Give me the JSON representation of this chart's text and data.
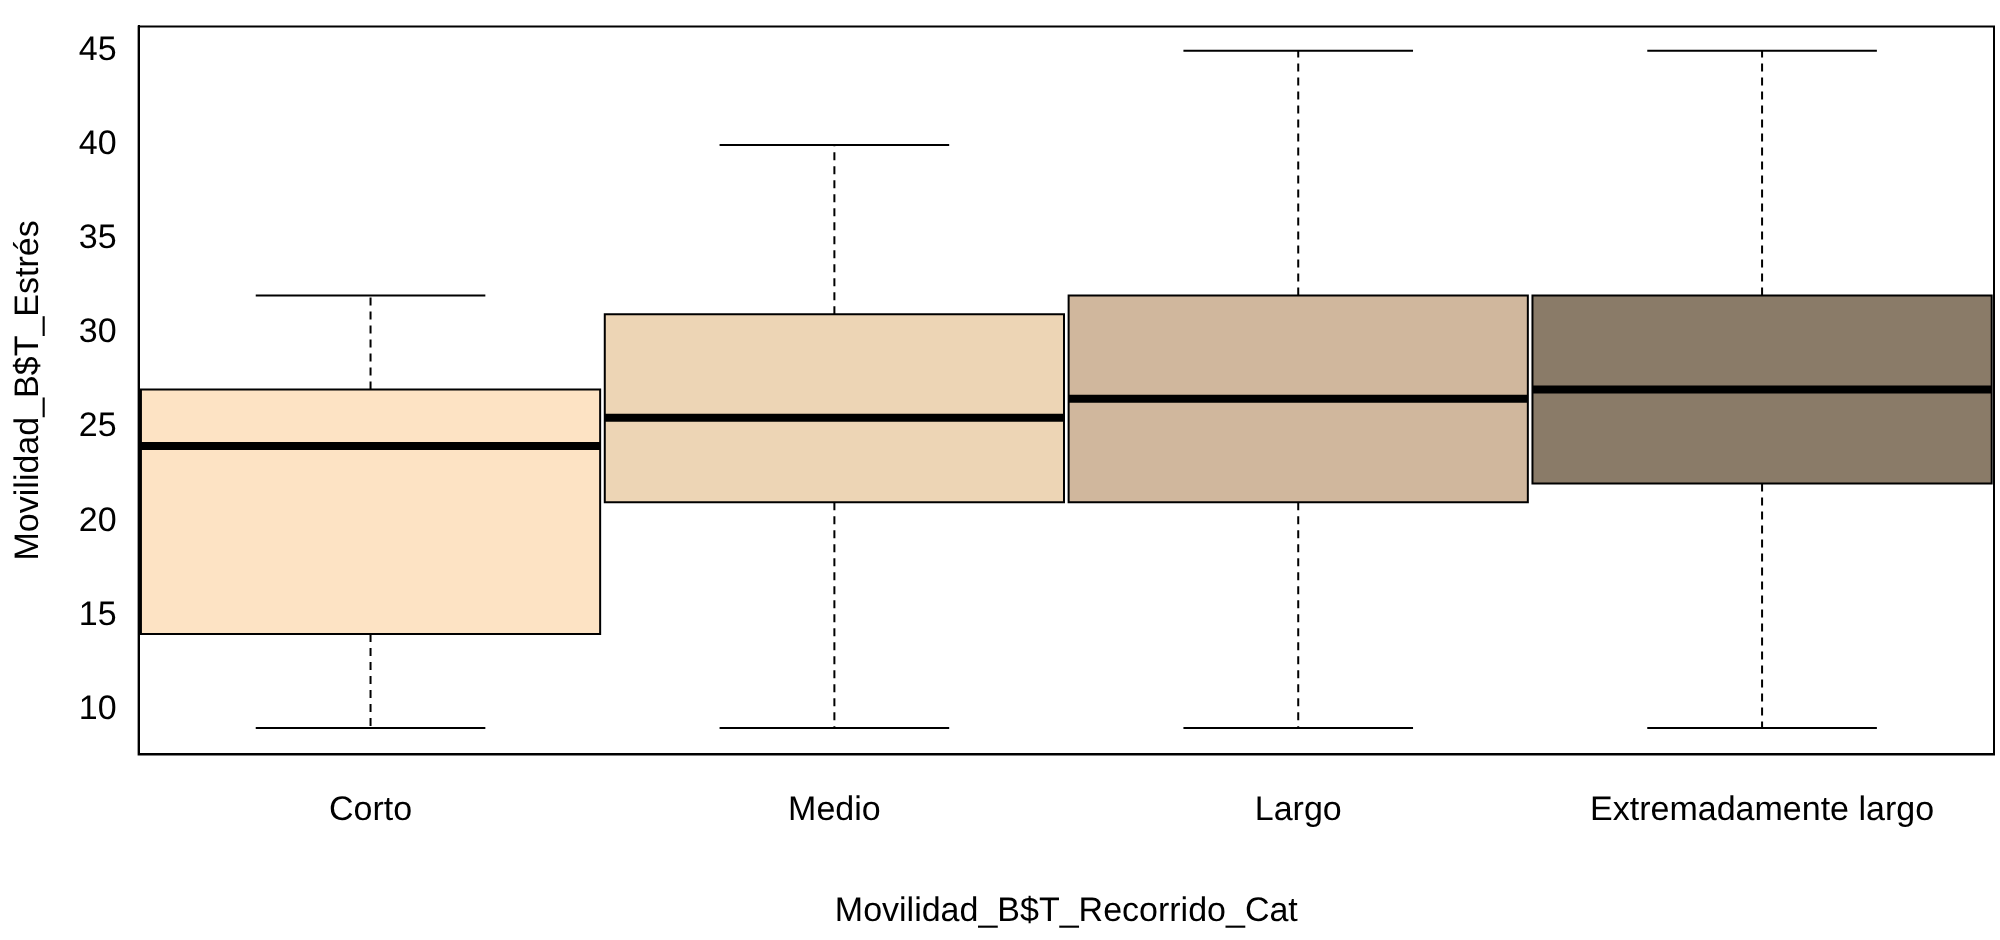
{
  "chart_data": {
    "type": "box",
    "xlabel": "Movilidad_B$T_Recorrido_Cat",
    "ylabel": "Movilidad_B$T_Estrés",
    "categories": [
      "Corto",
      "Medio",
      "Largo",
      "Extremadamente largo"
    ],
    "boxes": [
      {
        "low": 9,
        "q1": 14,
        "median": 24,
        "q3": 27,
        "high": 32
      },
      {
        "low": 9,
        "q1": 21,
        "median": 25.5,
        "q3": 31,
        "high": 40
      },
      {
        "low": 9,
        "q1": 21,
        "median": 26.5,
        "q3": 32,
        "high": 45
      },
      {
        "low": 9,
        "q1": 22,
        "median": 27,
        "q3": 32,
        "high": 45
      }
    ],
    "colors": [
      "#fde3c4",
      "#edd5b5",
      "#d0b79d",
      "#8a7b68"
    ],
    "ylim": [
      7.6,
      46.3
    ],
    "yticks": [
      10,
      15,
      20,
      25,
      30,
      35,
      40,
      45
    ],
    "grid": false
  }
}
